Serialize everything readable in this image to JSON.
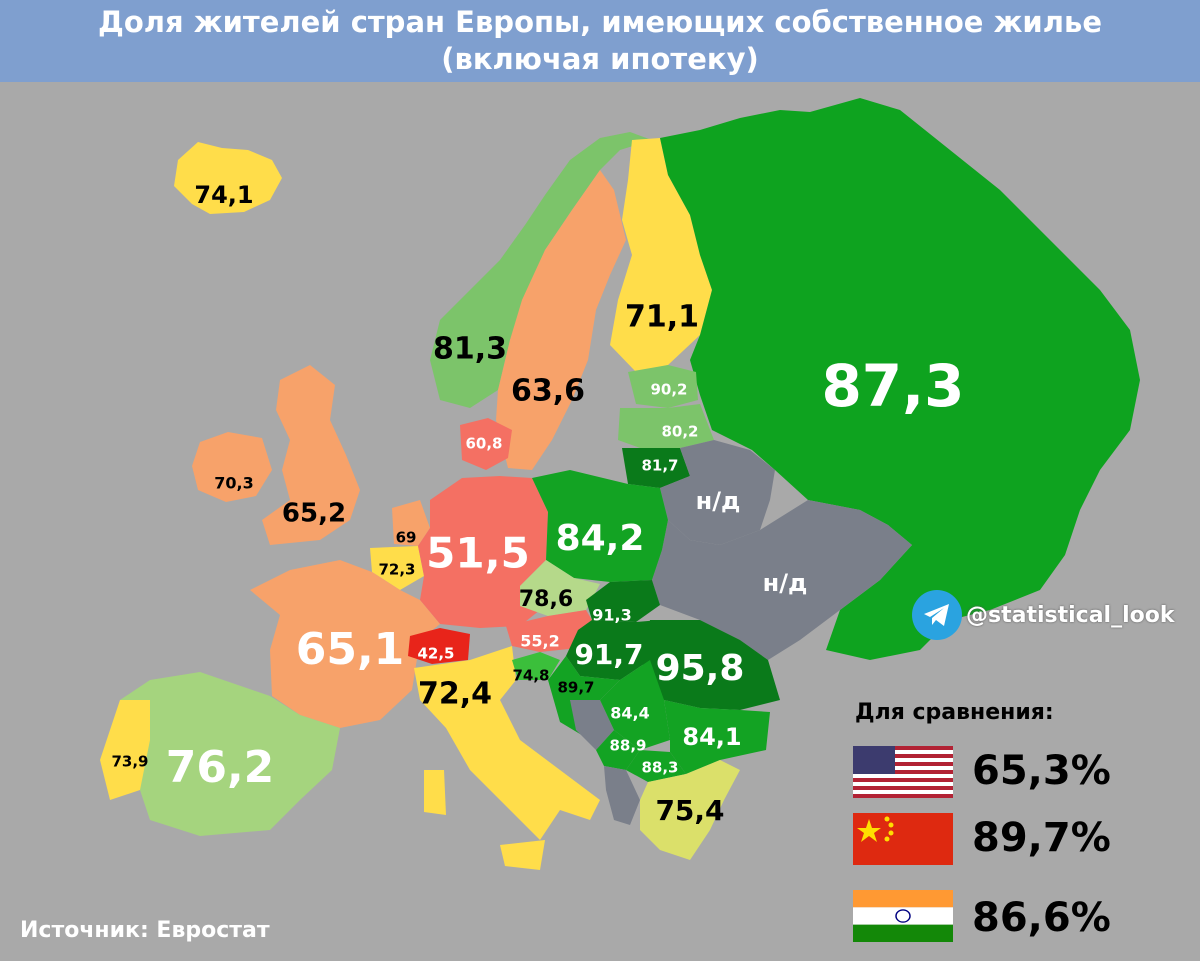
{
  "title": {
    "line1": "Доля жителей стран Европы, имеющих собственное жилье",
    "line2": "(включая ипотеку)"
  },
  "source": "Источник: Евростат",
  "telegram": {
    "handle": "@statistical_look",
    "icon": "telegram-icon"
  },
  "comparison": {
    "title": "Для сравнения:",
    "items": [
      {
        "flag": "usa-flag",
        "value": "65,3%"
      },
      {
        "flag": "china-flag",
        "value": "89,7%"
      },
      {
        "flag": "india-flag",
        "value": "86,6%"
      }
    ]
  },
  "colors": {
    "background": "#a9a9a9",
    "title_bar": "#7f9fcf",
    "no_data": "#7a7f8a",
    "dark_green": "#0a7a1a",
    "green": "#13a323",
    "mid_green": "#3bbf3b",
    "light_green": "#7cc46a",
    "pale_green": "#b5d98a",
    "yellow": "#ffdd4a",
    "orange": "#f7a26a",
    "salmon": "#f47063",
    "red": "#e8241a"
  },
  "countries": [
    {
      "id": "iceland",
      "label": "74,1"
    },
    {
      "id": "norway",
      "label": "81,3"
    },
    {
      "id": "sweden",
      "label": "63,6"
    },
    {
      "id": "finland",
      "label": "71,1"
    },
    {
      "id": "russia",
      "label": "87,3"
    },
    {
      "id": "estonia",
      "label": "90,2"
    },
    {
      "id": "latvia",
      "label": "80,2"
    },
    {
      "id": "lithuania",
      "label": "81,7"
    },
    {
      "id": "belarus",
      "label": "н/д"
    },
    {
      "id": "ukraine",
      "label": "н/д"
    },
    {
      "id": "denmark",
      "label": "60,8"
    },
    {
      "id": "ireland",
      "label": "70,3"
    },
    {
      "id": "uk",
      "label": "65,2"
    },
    {
      "id": "netherlands",
      "label": "69"
    },
    {
      "id": "belgium",
      "label": "72,3"
    },
    {
      "id": "germany",
      "label": "51,5"
    },
    {
      "id": "poland",
      "label": "84,2"
    },
    {
      "id": "czechia",
      "label": "78,6"
    },
    {
      "id": "slovakia",
      "label": "91,3"
    },
    {
      "id": "austria",
      "label": "55,2"
    },
    {
      "id": "hungary",
      "label": "91,7"
    },
    {
      "id": "romania",
      "label": "95,8"
    },
    {
      "id": "france",
      "label": "65,1"
    },
    {
      "id": "switzerland",
      "label": "42,5"
    },
    {
      "id": "italy",
      "label": "72,4"
    },
    {
      "id": "slovenia",
      "label": "74,8"
    },
    {
      "id": "croatia",
      "label": "89,7"
    },
    {
      "id": "serbia",
      "label": "84,4"
    },
    {
      "id": "bulgaria",
      "label": "84,1"
    },
    {
      "id": "montenegro",
      "label": "88,9"
    },
    {
      "id": "north-macedonia",
      "label": "88,3"
    },
    {
      "id": "greece",
      "label": "75,4"
    },
    {
      "id": "spain",
      "label": "76,2"
    },
    {
      "id": "portugal",
      "label": "73,9"
    }
  ]
}
